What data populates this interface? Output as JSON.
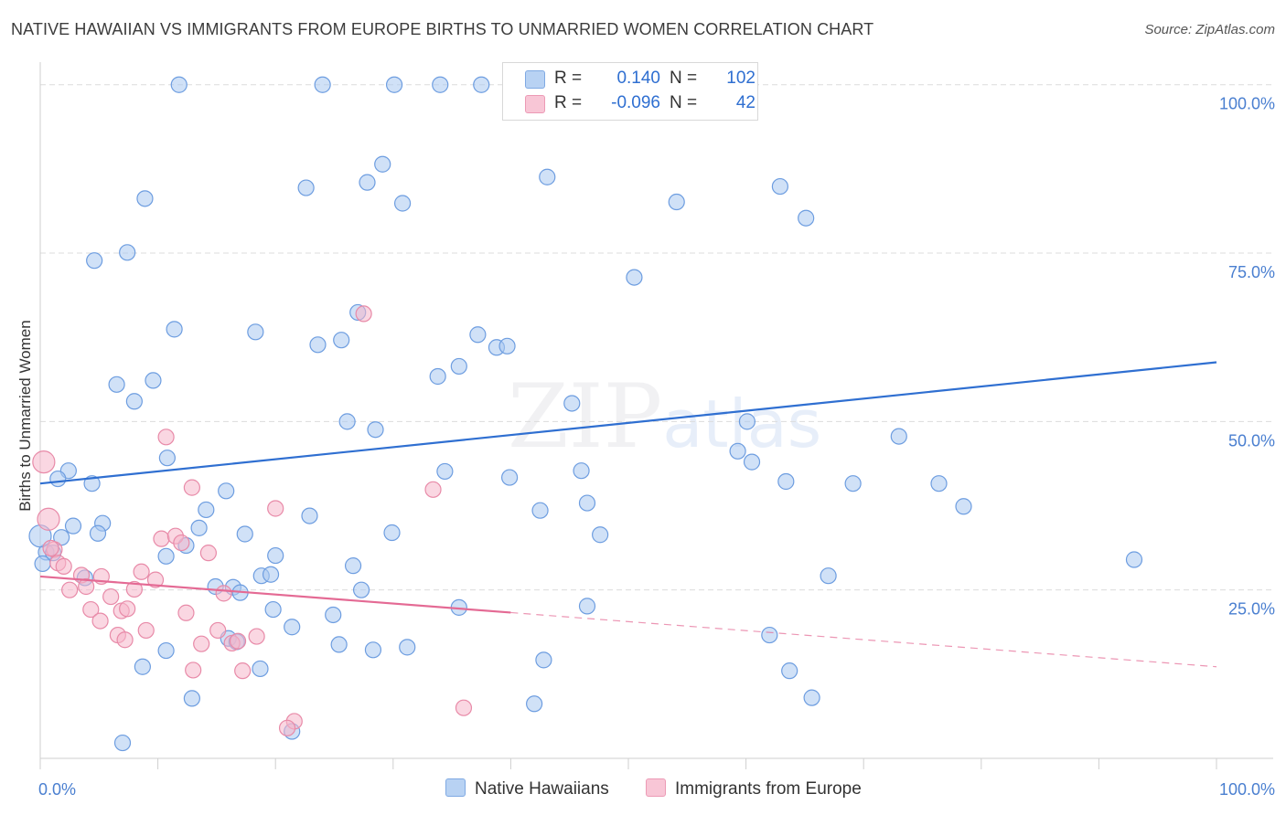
{
  "title": "NATIVE HAWAIIAN VS IMMIGRANTS FROM EUROPE BIRTHS TO UNMARRIED WOMEN CORRELATION CHART",
  "source": "Source: ZipAtlas.com",
  "watermark": {
    "zip": "ZIP",
    "atlas": "atlas"
  },
  "colors": {
    "blue_fill": "#a9c8f0",
    "blue_stroke": "#6d9de0",
    "blue_line": "#2f6fd1",
    "pink_fill": "#f6b6ca",
    "pink_stroke": "#e88aa8",
    "pink_line": "#e46a94",
    "grid": "#dcdcdc",
    "tick_label": "#4a7fd0"
  },
  "legend": {
    "rows": [
      {
        "r_label": "R =",
        "r_value": "0.140",
        "n_label": "N =",
        "n_value": "102",
        "color": "blue"
      },
      {
        "r_label": "R =",
        "r_value": "-0.096",
        "n_label": "N =",
        "n_value": "42",
        "color": "pink"
      }
    ]
  },
  "bottom_legend": [
    "Native Hawaiians",
    "Immigrants from Europe"
  ],
  "chart_data": {
    "type": "scatter",
    "xlabel": "",
    "ylabel": "Births to Unmarried Women",
    "xlim": [
      0,
      100
    ],
    "ylim": [
      0,
      102
    ],
    "x_tick_labels": [
      "0.0%",
      "100.0%"
    ],
    "y_ticks": [
      25,
      50,
      75,
      100
    ],
    "y_tick_labels": [
      "25.0%",
      "50.0%",
      "75.0%",
      "100.0%"
    ],
    "grid": true,
    "legend_position": "top-center",
    "series": [
      {
        "name": "Native Hawaiians",
        "color": "blue",
        "trend": {
          "x0": 0,
          "y0": 40.8,
          "x1": 100,
          "y1": 58.8,
          "dashed_from": null
        },
        "points": [
          [
            11.8,
            100
          ],
          [
            24.0,
            100
          ],
          [
            30.1,
            100
          ],
          [
            34.0,
            100
          ],
          [
            37.5,
            100
          ],
          [
            44.9,
            100
          ],
          [
            51.8,
            100
          ],
          [
            29.1,
            88.2
          ],
          [
            27.8,
            85.5
          ],
          [
            43.1,
            86.3
          ],
          [
            22.6,
            84.7
          ],
          [
            62.9,
            84.9
          ],
          [
            8.9,
            83.1
          ],
          [
            30.8,
            82.4
          ],
          [
            54.1,
            82.6
          ],
          [
            65.1,
            80.2
          ],
          [
            7.4,
            75.1
          ],
          [
            4.6,
            73.9
          ],
          [
            50.5,
            71.4
          ],
          [
            27.0,
            66.2
          ],
          [
            11.4,
            63.7
          ],
          [
            18.3,
            63.3
          ],
          [
            37.2,
            62.9
          ],
          [
            25.6,
            62.1
          ],
          [
            23.6,
            61.4
          ],
          [
            38.8,
            61.0
          ],
          [
            39.7,
            61.2
          ],
          [
            35.6,
            58.2
          ],
          [
            33.8,
            56.7
          ],
          [
            9.6,
            56.1
          ],
          [
            6.5,
            55.5
          ],
          [
            8.0,
            53.0
          ],
          [
            45.2,
            52.7
          ],
          [
            26.1,
            50.0
          ],
          [
            28.5,
            48.8
          ],
          [
            60.1,
            50.0
          ],
          [
            73.0,
            47.8
          ],
          [
            59.3,
            45.6
          ],
          [
            10.8,
            44.6
          ],
          [
            60.5,
            44.0
          ],
          [
            2.4,
            42.7
          ],
          [
            1.5,
            41.5
          ],
          [
            4.4,
            40.8
          ],
          [
            34.4,
            42.6
          ],
          [
            39.9,
            41.7
          ],
          [
            46.0,
            42.7
          ],
          [
            63.4,
            41.1
          ],
          [
            69.1,
            40.8
          ],
          [
            76.4,
            40.8
          ],
          [
            15.8,
            39.7
          ],
          [
            78.5,
            37.4
          ],
          [
            46.5,
            37.9
          ],
          [
            42.5,
            36.8
          ],
          [
            14.1,
            36.9
          ],
          [
            22.9,
            36.0
          ],
          [
            2.8,
            34.5
          ],
          [
            5.3,
            34.9
          ],
          [
            13.5,
            34.2
          ],
          [
            4.9,
            33.4
          ],
          [
            17.4,
            33.3
          ],
          [
            29.9,
            33.5
          ],
          [
            47.6,
            33.2
          ],
          [
            1.8,
            32.8
          ],
          [
            12.4,
            31.6
          ],
          [
            0.5,
            30.6
          ],
          [
            1.1,
            30.5
          ],
          [
            20.0,
            30.1
          ],
          [
            10.7,
            30.0
          ],
          [
            0.2,
            28.9
          ],
          [
            26.6,
            28.6
          ],
          [
            3.8,
            26.8
          ],
          [
            18.8,
            27.1
          ],
          [
            19.6,
            27.3
          ],
          [
            67.0,
            27.1
          ],
          [
            14.9,
            25.5
          ],
          [
            16.4,
            25.4
          ],
          [
            17.0,
            24.6
          ],
          [
            27.3,
            25.0
          ],
          [
            93.0,
            29.5
          ],
          [
            19.8,
            22.1
          ],
          [
            35.6,
            22.4
          ],
          [
            46.5,
            22.6
          ],
          [
            24.9,
            21.3
          ],
          [
            21.4,
            19.5
          ],
          [
            62.0,
            18.3
          ],
          [
            16.0,
            17.8
          ],
          [
            16.7,
            17.3
          ],
          [
            25.4,
            16.9
          ],
          [
            31.2,
            16.5
          ],
          [
            10.7,
            16.0
          ],
          [
            28.3,
            16.1
          ],
          [
            8.7,
            13.6
          ],
          [
            18.7,
            13.3
          ],
          [
            42.8,
            14.6
          ],
          [
            63.7,
            13.0
          ],
          [
            12.9,
            8.9
          ],
          [
            65.6,
            9.0
          ],
          [
            42.0,
            8.1
          ],
          [
            21.4,
            4.0
          ],
          [
            7.0,
            2.3
          ],
          [
            0.0,
            33.0
          ],
          [
            55.5,
            100
          ]
        ]
      },
      {
        "name": "Immigrants from Europe",
        "color": "pink",
        "trend": {
          "x0": 0,
          "y0": 27.0,
          "x1": 100,
          "y1": 13.6,
          "dashed_from": 40
        },
        "points": [
          [
            0.3,
            44.0
          ],
          [
            0.7,
            35.5
          ],
          [
            1.2,
            31.0
          ],
          [
            1.5,
            29.0
          ],
          [
            2.0,
            28.5
          ],
          [
            2.5,
            25.0
          ],
          [
            3.5,
            27.2
          ],
          [
            3.9,
            25.5
          ],
          [
            4.3,
            22.1
          ],
          [
            5.1,
            20.4
          ],
          [
            5.2,
            27.0
          ],
          [
            6.0,
            24.0
          ],
          [
            6.6,
            18.3
          ],
          [
            6.9,
            21.9
          ],
          [
            7.2,
            17.6
          ],
          [
            7.4,
            22.2
          ],
          [
            8.0,
            25.1
          ],
          [
            8.6,
            27.7
          ],
          [
            9.0,
            19.0
          ],
          [
            9.8,
            26.5
          ],
          [
            10.3,
            32.6
          ],
          [
            10.7,
            47.7
          ],
          [
            11.5,
            33.0
          ],
          [
            12.0,
            32.0
          ],
          [
            12.4,
            21.6
          ],
          [
            12.9,
            40.2
          ],
          [
            13.0,
            13.1
          ],
          [
            13.7,
            17.0
          ],
          [
            14.3,
            30.5
          ],
          [
            15.1,
            19.0
          ],
          [
            15.6,
            24.5
          ],
          [
            16.3,
            17.1
          ],
          [
            16.8,
            17.4
          ],
          [
            17.2,
            13.0
          ],
          [
            18.4,
            18.1
          ],
          [
            20.0,
            37.1
          ],
          [
            21.6,
            5.5
          ],
          [
            21.0,
            4.5
          ],
          [
            27.5,
            66.0
          ],
          [
            33.4,
            39.9
          ],
          [
            36.0,
            7.5
          ],
          [
            0.9,
            31.2
          ]
        ]
      }
    ]
  }
}
